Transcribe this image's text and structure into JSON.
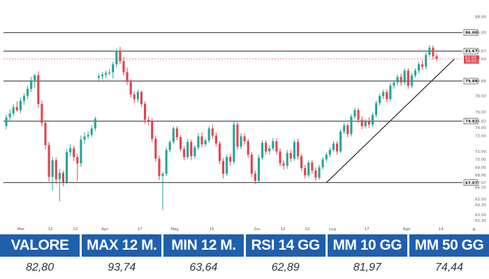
{
  "chart_data": {
    "type": "candlestick",
    "y_ticks": [
      "88.00",
      "86.00",
      "83.67",
      "82.69",
      "79.89",
      "78.00",
      "76.00",
      "74.82",
      "74.00",
      "73.00",
      "71.00",
      "70.00",
      "69.00",
      "68.00",
      "67.07",
      "66.50",
      "65.00",
      "64.30",
      "63.00",
      "62.30"
    ],
    "x_ticks": [
      "Mar",
      "12",
      "22",
      "Apr",
      "17",
      "Mag",
      "15",
      "Giu",
      "12",
      "22",
      "Lug",
      "17",
      "Ago",
      "14"
    ],
    "horizontal_levels": [
      {
        "label": "86.00",
        "value": 86.0
      },
      {
        "label": "83.67",
        "value": 83.67
      },
      {
        "label": "79.89",
        "value": 79.89
      },
      {
        "label": "74.82",
        "value": 74.82
      },
      {
        "label": "67.07",
        "value": 67.07
      }
    ],
    "last_price": {
      "label": "82.69",
      "sub_label": "38:00:13",
      "value": 82.69,
      "color": "#e0454f"
    },
    "trendline": {
      "from_index": 90,
      "from_value": 67.07,
      "to_index": 124,
      "to_value": 82.3
    },
    "up_color": "#26a69a",
    "down_color": "#e0454f",
    "candles": [
      {
        "o": 74.2,
        "h": 75.6,
        "l": 73.8,
        "c": 75.3
      },
      {
        "o": 75.3,
        "h": 76.3,
        "l": 74.8,
        "c": 75.8
      },
      {
        "o": 75.8,
        "h": 77.0,
        "l": 75.4,
        "c": 76.6
      },
      {
        "o": 76.6,
        "h": 77.3,
        "l": 76.0,
        "c": 76.2
      },
      {
        "o": 76.2,
        "h": 77.8,
        "l": 75.8,
        "c": 77.4
      },
      {
        "o": 77.4,
        "h": 78.3,
        "l": 76.9,
        "c": 78.0
      },
      {
        "o": 78.0,
        "h": 79.3,
        "l": 77.6,
        "c": 78.9
      },
      {
        "o": 78.9,
        "h": 80.4,
        "l": 78.5,
        "c": 80.0
      },
      {
        "o": 80.0,
        "h": 80.8,
        "l": 79.0,
        "c": 80.6
      },
      {
        "o": 80.6,
        "h": 81.1,
        "l": 76.5,
        "c": 77.0
      },
      {
        "o": 77.0,
        "h": 77.4,
        "l": 74.2,
        "c": 74.6
      },
      {
        "o": 74.6,
        "h": 75.0,
        "l": 71.3,
        "c": 71.8
      },
      {
        "o": 71.8,
        "h": 72.2,
        "l": 67.2,
        "c": 67.8
      },
      {
        "o": 67.8,
        "h": 70.3,
        "l": 66.1,
        "c": 69.9
      },
      {
        "o": 69.9,
        "h": 70.2,
        "l": 66.9,
        "c": 67.5
      },
      {
        "o": 67.5,
        "h": 68.8,
        "l": 64.7,
        "c": 68.3
      },
      {
        "o": 68.3,
        "h": 68.6,
        "l": 66.6,
        "c": 67.1
      },
      {
        "o": 67.1,
        "h": 71.3,
        "l": 66.9,
        "c": 70.9
      },
      {
        "o": 70.9,
        "h": 71.9,
        "l": 70.4,
        "c": 71.4
      },
      {
        "o": 71.4,
        "h": 71.7,
        "l": 69.8,
        "c": 70.3
      },
      {
        "o": 70.3,
        "h": 70.7,
        "l": 67.3,
        "c": 69.5
      },
      {
        "o": 69.5,
        "h": 73.0,
        "l": 69.1,
        "c": 72.5
      },
      {
        "o": 72.5,
        "h": 73.4,
        "l": 72.0,
        "c": 72.9
      },
      {
        "o": 72.9,
        "h": 73.5,
        "l": 72.6,
        "c": 73.1
      },
      {
        "o": 73.1,
        "h": 74.3,
        "l": 72.8,
        "c": 73.9
      },
      {
        "o": 73.9,
        "h": 75.4,
        "l": 73.6,
        "c": 75.1
      },
      {
        "o": 80.3,
        "h": 80.8,
        "l": 79.8,
        "c": 80.5
      },
      {
        "o": 80.5,
        "h": 81.0,
        "l": 80.1,
        "c": 80.7
      },
      {
        "o": 80.7,
        "h": 81.2,
        "l": 80.3,
        "c": 80.9
      },
      {
        "o": 80.9,
        "h": 81.4,
        "l": 80.6,
        "c": 81.0
      },
      {
        "o": 81.0,
        "h": 82.3,
        "l": 80.2,
        "c": 82.0
      },
      {
        "o": 82.0,
        "h": 84.0,
        "l": 81.6,
        "c": 83.7
      },
      {
        "o": 83.7,
        "h": 84.2,
        "l": 82.0,
        "c": 82.4
      },
      {
        "o": 82.4,
        "h": 82.9,
        "l": 80.6,
        "c": 81.0
      },
      {
        "o": 81.0,
        "h": 81.6,
        "l": 79.4,
        "c": 79.8
      },
      {
        "o": 79.8,
        "h": 80.1,
        "l": 77.8,
        "c": 78.2
      },
      {
        "o": 78.2,
        "h": 78.6,
        "l": 77.1,
        "c": 77.6
      },
      {
        "o": 77.6,
        "h": 78.8,
        "l": 77.2,
        "c": 78.5
      },
      {
        "o": 78.5,
        "h": 78.7,
        "l": 76.6,
        "c": 77.0
      },
      {
        "o": 77.0,
        "h": 77.3,
        "l": 74.5,
        "c": 75.0
      },
      {
        "o": 75.0,
        "h": 75.4,
        "l": 74.3,
        "c": 74.8
      },
      {
        "o": 74.8,
        "h": 75.2,
        "l": 72.2,
        "c": 72.6
      },
      {
        "o": 72.6,
        "h": 73.0,
        "l": 69.7,
        "c": 70.1
      },
      {
        "o": 70.1,
        "h": 70.5,
        "l": 67.4,
        "c": 67.9
      },
      {
        "o": 67.9,
        "h": 68.4,
        "l": 63.6,
        "c": 68.2
      },
      {
        "o": 68.2,
        "h": 71.5,
        "l": 67.9,
        "c": 71.2
      },
      {
        "o": 71.2,
        "h": 72.4,
        "l": 70.9,
        "c": 72.2
      },
      {
        "o": 72.2,
        "h": 74.2,
        "l": 71.9,
        "c": 73.9
      },
      {
        "o": 73.9,
        "h": 74.2,
        "l": 72.4,
        "c": 72.8
      },
      {
        "o": 72.8,
        "h": 73.1,
        "l": 71.0,
        "c": 71.3
      },
      {
        "o": 71.3,
        "h": 71.7,
        "l": 69.9,
        "c": 70.3
      },
      {
        "o": 70.3,
        "h": 72.6,
        "l": 70.0,
        "c": 72.2
      },
      {
        "o": 72.2,
        "h": 72.5,
        "l": 69.9,
        "c": 70.4
      },
      {
        "o": 70.4,
        "h": 71.8,
        "l": 70.1,
        "c": 71.5
      },
      {
        "o": 71.5,
        "h": 73.3,
        "l": 71.2,
        "c": 72.9
      },
      {
        "o": 72.9,
        "h": 73.4,
        "l": 71.5,
        "c": 71.9
      },
      {
        "o": 71.9,
        "h": 72.7,
        "l": 71.6,
        "c": 72.4
      },
      {
        "o": 72.4,
        "h": 74.2,
        "l": 72.1,
        "c": 73.9
      },
      {
        "o": 73.9,
        "h": 74.4,
        "l": 72.6,
        "c": 73.0
      },
      {
        "o": 73.0,
        "h": 73.4,
        "l": 71.6,
        "c": 72.0
      },
      {
        "o": 72.0,
        "h": 72.3,
        "l": 69.4,
        "c": 69.8
      },
      {
        "o": 69.8,
        "h": 70.2,
        "l": 67.6,
        "c": 68.2
      },
      {
        "o": 68.2,
        "h": 70.6,
        "l": 67.9,
        "c": 70.3
      },
      {
        "o": 70.3,
        "h": 70.7,
        "l": 69.2,
        "c": 69.7
      },
      {
        "o": 69.7,
        "h": 74.8,
        "l": 69.4,
        "c": 74.4
      },
      {
        "o": 74.4,
        "h": 74.7,
        "l": 71.2,
        "c": 71.6
      },
      {
        "o": 71.6,
        "h": 73.3,
        "l": 71.3,
        "c": 72.9
      },
      {
        "o": 72.9,
        "h": 73.3,
        "l": 71.9,
        "c": 72.3
      },
      {
        "o": 72.3,
        "h": 72.6,
        "l": 70.2,
        "c": 70.6
      },
      {
        "o": 70.6,
        "h": 70.9,
        "l": 67.8,
        "c": 68.2
      },
      {
        "o": 68.2,
        "h": 68.6,
        "l": 66.9,
        "c": 67.3
      },
      {
        "o": 67.3,
        "h": 70.6,
        "l": 67.0,
        "c": 70.2
      },
      {
        "o": 70.2,
        "h": 72.4,
        "l": 69.9,
        "c": 72.1
      },
      {
        "o": 72.1,
        "h": 72.4,
        "l": 70.6,
        "c": 71.0
      },
      {
        "o": 71.0,
        "h": 71.8,
        "l": 70.6,
        "c": 71.4
      },
      {
        "o": 71.4,
        "h": 72.7,
        "l": 71.1,
        "c": 72.3
      },
      {
        "o": 72.3,
        "h": 72.7,
        "l": 70.6,
        "c": 71.0
      },
      {
        "o": 71.0,
        "h": 71.4,
        "l": 69.1,
        "c": 69.5
      },
      {
        "o": 69.5,
        "h": 69.9,
        "l": 68.7,
        "c": 69.2
      },
      {
        "o": 69.2,
        "h": 71.2,
        "l": 68.8,
        "c": 70.8
      },
      {
        "o": 70.8,
        "h": 71.2,
        "l": 69.7,
        "c": 70.1
      },
      {
        "o": 70.1,
        "h": 72.5,
        "l": 69.8,
        "c": 72.2
      },
      {
        "o": 72.2,
        "h": 72.6,
        "l": 70.0,
        "c": 70.4
      },
      {
        "o": 70.4,
        "h": 70.7,
        "l": 68.5,
        "c": 68.9
      },
      {
        "o": 68.9,
        "h": 69.3,
        "l": 67.6,
        "c": 68.0
      },
      {
        "o": 68.0,
        "h": 69.9,
        "l": 67.7,
        "c": 69.6
      },
      {
        "o": 69.6,
        "h": 69.9,
        "l": 68.2,
        "c": 68.6
      },
      {
        "o": 68.6,
        "h": 69.0,
        "l": 67.3,
        "c": 67.7
      },
      {
        "o": 67.7,
        "h": 69.3,
        "l": 67.4,
        "c": 69.0
      },
      {
        "o": 69.0,
        "h": 70.3,
        "l": 68.7,
        "c": 70.0
      },
      {
        "o": 70.0,
        "h": 70.9,
        "l": 69.7,
        "c": 70.6
      },
      {
        "o": 70.6,
        "h": 71.5,
        "l": 70.3,
        "c": 71.2
      },
      {
        "o": 71.2,
        "h": 72.3,
        "l": 70.9,
        "c": 72.0
      },
      {
        "o": 72.0,
        "h": 72.3,
        "l": 70.6,
        "c": 71.0
      },
      {
        "o": 71.0,
        "h": 73.8,
        "l": 70.8,
        "c": 73.5
      },
      {
        "o": 73.5,
        "h": 74.6,
        "l": 73.2,
        "c": 74.3
      },
      {
        "o": 74.3,
        "h": 74.6,
        "l": 72.8,
        "c": 73.2
      },
      {
        "o": 73.2,
        "h": 75.7,
        "l": 72.9,
        "c": 75.4
      },
      {
        "o": 75.4,
        "h": 76.5,
        "l": 75.1,
        "c": 76.2
      },
      {
        "o": 76.2,
        "h": 76.5,
        "l": 74.6,
        "c": 75.0
      },
      {
        "o": 75.0,
        "h": 75.4,
        "l": 73.8,
        "c": 74.2
      },
      {
        "o": 74.2,
        "h": 75.1,
        "l": 73.9,
        "c": 74.8
      },
      {
        "o": 74.8,
        "h": 75.3,
        "l": 74.0,
        "c": 74.4
      },
      {
        "o": 74.4,
        "h": 75.9,
        "l": 74.1,
        "c": 75.6
      },
      {
        "o": 75.6,
        "h": 77.4,
        "l": 75.3,
        "c": 77.1
      },
      {
        "o": 77.1,
        "h": 78.3,
        "l": 76.8,
        "c": 78.0
      },
      {
        "o": 78.0,
        "h": 78.8,
        "l": 77.6,
        "c": 78.5
      },
      {
        "o": 78.5,
        "h": 78.8,
        "l": 77.2,
        "c": 77.6
      },
      {
        "o": 77.6,
        "h": 79.6,
        "l": 77.3,
        "c": 79.3
      },
      {
        "o": 79.3,
        "h": 80.0,
        "l": 78.9,
        "c": 79.7
      },
      {
        "o": 79.7,
        "h": 80.7,
        "l": 79.3,
        "c": 80.4
      },
      {
        "o": 80.4,
        "h": 80.8,
        "l": 79.3,
        "c": 79.7
      },
      {
        "o": 79.7,
        "h": 81.5,
        "l": 79.4,
        "c": 81.2
      },
      {
        "o": 81.2,
        "h": 81.5,
        "l": 78.9,
        "c": 79.3
      },
      {
        "o": 79.3,
        "h": 80.9,
        "l": 79.0,
        "c": 80.6
      },
      {
        "o": 80.6,
        "h": 81.5,
        "l": 80.3,
        "c": 81.2
      },
      {
        "o": 81.2,
        "h": 82.3,
        "l": 80.9,
        "c": 82.0
      },
      {
        "o": 82.0,
        "h": 82.5,
        "l": 81.3,
        "c": 81.7
      },
      {
        "o": 81.7,
        "h": 83.5,
        "l": 81.4,
        "c": 83.2
      },
      {
        "o": 83.2,
        "h": 84.4,
        "l": 82.9,
        "c": 84.1
      },
      {
        "o": 84.1,
        "h": 84.4,
        "l": 82.6,
        "c": 83.0
      },
      {
        "o": 83.0,
        "h": 83.3,
        "l": 82.4,
        "c": 82.7
      }
    ]
  },
  "stats": {
    "headers": [
      "VALORE",
      "MAX 12 M.",
      "MIN 12 M.",
      "RSI 14 GG",
      "MM 10 GG",
      "MM 50 GG"
    ],
    "values": [
      "82,80",
      "93,74",
      "63,64",
      "62,89",
      "81,97",
      "74,44"
    ],
    "header_bg": "#1f5fae"
  }
}
